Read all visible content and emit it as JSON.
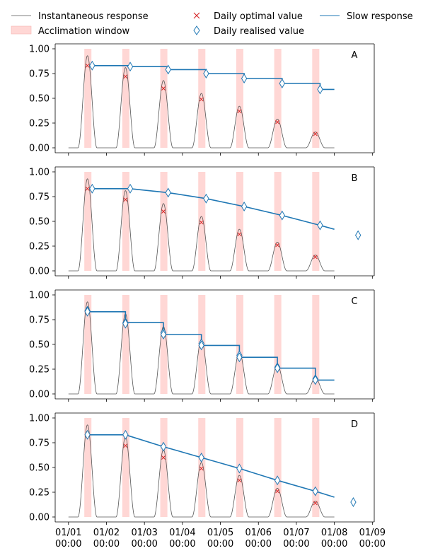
{
  "chart_data": {
    "type": "line",
    "colors": {
      "instantaneous": "#555555",
      "window": "#ffd7d5",
      "optimal": "#d62728",
      "realised": "#1f77b4",
      "slow": "#1f77b4"
    },
    "legend": {
      "placement": "top",
      "entries": [
        {
          "key": "instantaneous",
          "label": "Instantaneous response"
        },
        {
          "key": "window",
          "label": "Acclimation window"
        },
        {
          "key": "optimal",
          "label": "Daily optimal value"
        },
        {
          "key": "realised",
          "label": "Daily realised value"
        },
        {
          "key": "slow",
          "label": "Slow response"
        }
      ]
    },
    "x_axis": {
      "range_days": [
        -0.35,
        8.05
      ],
      "ticks": [
        {
          "day": 0,
          "label": [
            "01/01",
            "00:00"
          ]
        },
        {
          "day": 1,
          "label": [
            "01/02",
            "00:00"
          ]
        },
        {
          "day": 2,
          "label": [
            "01/03",
            "00:00"
          ]
        },
        {
          "day": 3,
          "label": [
            "01/04",
            "00:00"
          ]
        },
        {
          "day": 4,
          "label": [
            "01/05",
            "00:00"
          ]
        },
        {
          "day": 5,
          "label": [
            "01/06",
            "00:00"
          ]
        },
        {
          "day": 6,
          "label": [
            "01/07",
            "00:00"
          ]
        },
        {
          "day": 7,
          "label": [
            "01/08",
            "00:00"
          ]
        },
        {
          "day": 8,
          "label": [
            "01/09",
            "00:00"
          ]
        }
      ]
    },
    "y_axis": {
      "range": [
        -0.05,
        1.05
      ],
      "ticks": [
        0.0,
        0.25,
        0.5,
        0.75,
        1.0
      ],
      "tick_labels": [
        "0.00",
        "0.25",
        "0.50",
        "0.75",
        "1.00"
      ]
    },
    "instantaneous": {
      "daylight_hours": [
        6,
        18
      ],
      "daily_peaks": [
        0.93,
        0.81,
        0.68,
        0.55,
        0.42,
        0.29,
        0.16
      ],
      "end_day": 7
    },
    "acclimation_window_hours": [
      10.0,
      14.5
    ],
    "daily_optimal": [
      0.83,
      0.72,
      0.6,
      0.49,
      0.37,
      0.26,
      0.14
    ],
    "panels": [
      {
        "label": "A",
        "realised": [
          [
            0.625,
            0.83
          ],
          [
            1.625,
            0.82
          ],
          [
            2.625,
            0.79
          ],
          [
            3.625,
            0.75
          ],
          [
            4.625,
            0.7
          ],
          [
            5.625,
            0.65
          ],
          [
            6.625,
            0.59
          ]
        ],
        "slow": [
          [
            0.625,
            0.83
          ],
          [
            1.625,
            0.83
          ],
          [
            1.625,
            0.82
          ],
          [
            2.625,
            0.82
          ],
          [
            2.625,
            0.79
          ],
          [
            3.625,
            0.79
          ],
          [
            3.625,
            0.75
          ],
          [
            4.625,
            0.75
          ],
          [
            4.625,
            0.7
          ],
          [
            5.625,
            0.7
          ],
          [
            5.625,
            0.65
          ],
          [
            6.625,
            0.65
          ],
          [
            6.625,
            0.59
          ],
          [
            7.0,
            0.59
          ]
        ]
      },
      {
        "label": "B",
        "realised": [
          [
            0.625,
            0.83
          ],
          [
            1.625,
            0.83
          ],
          [
            2.625,
            0.79
          ],
          [
            3.625,
            0.73
          ],
          [
            4.625,
            0.65
          ],
          [
            5.625,
            0.56
          ],
          [
            6.625,
            0.46
          ],
          [
            7.625,
            0.36
          ]
        ],
        "slow": [
          [
            0.625,
            0.83
          ],
          [
            1.625,
            0.83
          ],
          [
            2.625,
            0.79
          ],
          [
            3.625,
            0.73
          ],
          [
            4.625,
            0.65
          ],
          [
            5.625,
            0.56
          ],
          [
            6.625,
            0.46
          ],
          [
            7.0,
            0.42
          ]
        ]
      },
      {
        "label": "C",
        "realised": [
          [
            0.5,
            0.84
          ],
          [
            0.5,
            0.83
          ],
          [
            1.5,
            0.72
          ],
          [
            1.5,
            0.71
          ],
          [
            2.5,
            0.62
          ],
          [
            2.5,
            0.6
          ],
          [
            3.5,
            0.51
          ],
          [
            3.5,
            0.49
          ],
          [
            4.5,
            0.39
          ],
          [
            4.5,
            0.37
          ],
          [
            5.5,
            0.27
          ],
          [
            5.5,
            0.26
          ],
          [
            6.5,
            0.15
          ],
          [
            6.5,
            0.14
          ]
        ],
        "slow": [
          [
            0.5,
            0.83
          ],
          [
            1.5,
            0.83
          ],
          [
            1.5,
            0.72
          ],
          [
            2.5,
            0.72
          ],
          [
            2.5,
            0.6
          ],
          [
            3.5,
            0.6
          ],
          [
            3.5,
            0.49
          ],
          [
            4.5,
            0.49
          ],
          [
            4.5,
            0.37
          ],
          [
            5.5,
            0.37
          ],
          [
            5.5,
            0.26
          ],
          [
            6.5,
            0.26
          ],
          [
            6.5,
            0.14
          ],
          [
            7.0,
            0.14
          ]
        ]
      },
      {
        "label": "D",
        "realised": [
          [
            0.5,
            0.83
          ],
          [
            1.5,
            0.83
          ],
          [
            2.5,
            0.71
          ],
          [
            3.5,
            0.6
          ],
          [
            4.5,
            0.49
          ],
          [
            5.5,
            0.37
          ],
          [
            6.5,
            0.26
          ],
          [
            7.5,
            0.15
          ]
        ],
        "slow": [
          [
            0.5,
            0.83
          ],
          [
            1.5,
            0.83
          ],
          [
            2.5,
            0.71
          ],
          [
            3.5,
            0.6
          ],
          [
            4.5,
            0.49
          ],
          [
            5.5,
            0.37
          ],
          [
            6.5,
            0.26
          ],
          [
            7.0,
            0.2
          ]
        ]
      }
    ]
  }
}
